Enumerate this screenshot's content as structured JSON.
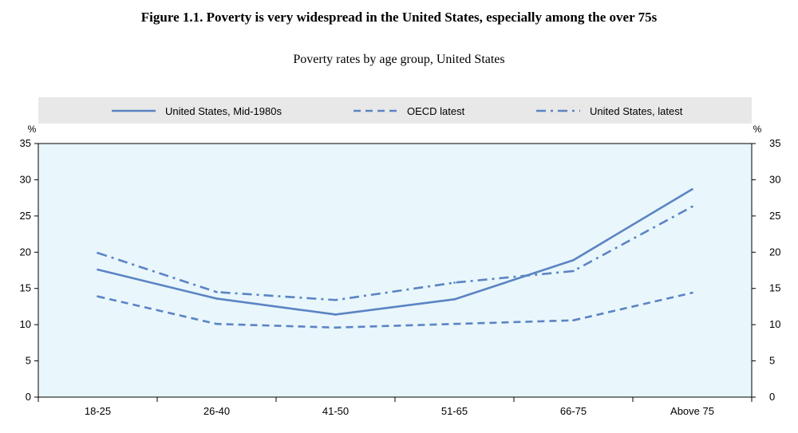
{
  "figure_title": "Figure 1.1. Poverty is very widespread in the United States, especially among the over 75s",
  "chart_data": {
    "type": "line",
    "title": "Poverty rates by age group, United States",
    "categories": [
      "18-25",
      "26-40",
      "41-50",
      "51-65",
      "66-75",
      "Above 75"
    ],
    "series": [
      {
        "name": "United States, Mid-1980s",
        "style": "solid",
        "values": [
          17.6,
          13.6,
          11.4,
          13.5,
          18.9,
          28.7
        ]
      },
      {
        "name": "OECD latest",
        "style": "dashed",
        "values": [
          13.9,
          10.1,
          9.6,
          10.1,
          10.6,
          14.4
        ]
      },
      {
        "name": "United States, latest",
        "style": "dashdot",
        "values": [
          19.9,
          14.5,
          13.4,
          15.8,
          17.4,
          26.3
        ]
      }
    ],
    "ylabel_left": "%",
    "ylabel_right": "%",
    "ylim": [
      0,
      35
    ],
    "yticks": [
      0,
      5,
      10,
      15,
      20,
      25,
      30,
      35
    ],
    "legend_position": "top",
    "colors": {
      "line": "#5b84c4",
      "plot_background": "#e9f6fb",
      "legend_background": "#e8e8e8",
      "axis": "#000000"
    }
  }
}
